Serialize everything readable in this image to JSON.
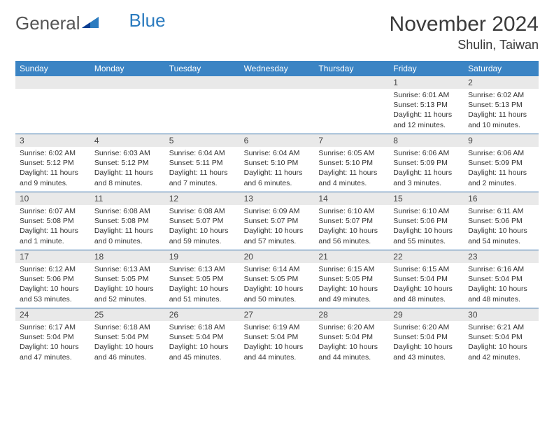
{
  "logo": {
    "text1": "General",
    "text2": "Blue"
  },
  "title": "November 2024",
  "location": "Shulin, Taiwan",
  "colors": {
    "header_bg": "#3b84c4",
    "row_border": "#2f6da8",
    "daynum_bg": "#e9e9e9",
    "text": "#333333"
  },
  "dow": [
    "Sunday",
    "Monday",
    "Tuesday",
    "Wednesday",
    "Thursday",
    "Friday",
    "Saturday"
  ],
  "weeks": [
    [
      {
        "n": "",
        "lines": []
      },
      {
        "n": "",
        "lines": []
      },
      {
        "n": "",
        "lines": []
      },
      {
        "n": "",
        "lines": []
      },
      {
        "n": "",
        "lines": []
      },
      {
        "n": "1",
        "lines": [
          "Sunrise: 6:01 AM",
          "Sunset: 5:13 PM",
          "Daylight: 11 hours",
          "and 12 minutes."
        ]
      },
      {
        "n": "2",
        "lines": [
          "Sunrise: 6:02 AM",
          "Sunset: 5:13 PM",
          "Daylight: 11 hours",
          "and 10 minutes."
        ]
      }
    ],
    [
      {
        "n": "3",
        "lines": [
          "Sunrise: 6:02 AM",
          "Sunset: 5:12 PM",
          "Daylight: 11 hours",
          "and 9 minutes."
        ]
      },
      {
        "n": "4",
        "lines": [
          "Sunrise: 6:03 AM",
          "Sunset: 5:12 PM",
          "Daylight: 11 hours",
          "and 8 minutes."
        ]
      },
      {
        "n": "5",
        "lines": [
          "Sunrise: 6:04 AM",
          "Sunset: 5:11 PM",
          "Daylight: 11 hours",
          "and 7 minutes."
        ]
      },
      {
        "n": "6",
        "lines": [
          "Sunrise: 6:04 AM",
          "Sunset: 5:10 PM",
          "Daylight: 11 hours",
          "and 6 minutes."
        ]
      },
      {
        "n": "7",
        "lines": [
          "Sunrise: 6:05 AM",
          "Sunset: 5:10 PM",
          "Daylight: 11 hours",
          "and 4 minutes."
        ]
      },
      {
        "n": "8",
        "lines": [
          "Sunrise: 6:06 AM",
          "Sunset: 5:09 PM",
          "Daylight: 11 hours",
          "and 3 minutes."
        ]
      },
      {
        "n": "9",
        "lines": [
          "Sunrise: 6:06 AM",
          "Sunset: 5:09 PM",
          "Daylight: 11 hours",
          "and 2 minutes."
        ]
      }
    ],
    [
      {
        "n": "10",
        "lines": [
          "Sunrise: 6:07 AM",
          "Sunset: 5:08 PM",
          "Daylight: 11 hours",
          "and 1 minute."
        ]
      },
      {
        "n": "11",
        "lines": [
          "Sunrise: 6:08 AM",
          "Sunset: 5:08 PM",
          "Daylight: 11 hours",
          "and 0 minutes."
        ]
      },
      {
        "n": "12",
        "lines": [
          "Sunrise: 6:08 AM",
          "Sunset: 5:07 PM",
          "Daylight: 10 hours",
          "and 59 minutes."
        ]
      },
      {
        "n": "13",
        "lines": [
          "Sunrise: 6:09 AM",
          "Sunset: 5:07 PM",
          "Daylight: 10 hours",
          "and 57 minutes."
        ]
      },
      {
        "n": "14",
        "lines": [
          "Sunrise: 6:10 AM",
          "Sunset: 5:07 PM",
          "Daylight: 10 hours",
          "and 56 minutes."
        ]
      },
      {
        "n": "15",
        "lines": [
          "Sunrise: 6:10 AM",
          "Sunset: 5:06 PM",
          "Daylight: 10 hours",
          "and 55 minutes."
        ]
      },
      {
        "n": "16",
        "lines": [
          "Sunrise: 6:11 AM",
          "Sunset: 5:06 PM",
          "Daylight: 10 hours",
          "and 54 minutes."
        ]
      }
    ],
    [
      {
        "n": "17",
        "lines": [
          "Sunrise: 6:12 AM",
          "Sunset: 5:06 PM",
          "Daylight: 10 hours",
          "and 53 minutes."
        ]
      },
      {
        "n": "18",
        "lines": [
          "Sunrise: 6:13 AM",
          "Sunset: 5:05 PM",
          "Daylight: 10 hours",
          "and 52 minutes."
        ]
      },
      {
        "n": "19",
        "lines": [
          "Sunrise: 6:13 AM",
          "Sunset: 5:05 PM",
          "Daylight: 10 hours",
          "and 51 minutes."
        ]
      },
      {
        "n": "20",
        "lines": [
          "Sunrise: 6:14 AM",
          "Sunset: 5:05 PM",
          "Daylight: 10 hours",
          "and 50 minutes."
        ]
      },
      {
        "n": "21",
        "lines": [
          "Sunrise: 6:15 AM",
          "Sunset: 5:05 PM",
          "Daylight: 10 hours",
          "and 49 minutes."
        ]
      },
      {
        "n": "22",
        "lines": [
          "Sunrise: 6:15 AM",
          "Sunset: 5:04 PM",
          "Daylight: 10 hours",
          "and 48 minutes."
        ]
      },
      {
        "n": "23",
        "lines": [
          "Sunrise: 6:16 AM",
          "Sunset: 5:04 PM",
          "Daylight: 10 hours",
          "and 48 minutes."
        ]
      }
    ],
    [
      {
        "n": "24",
        "lines": [
          "Sunrise: 6:17 AM",
          "Sunset: 5:04 PM",
          "Daylight: 10 hours",
          "and 47 minutes."
        ]
      },
      {
        "n": "25",
        "lines": [
          "Sunrise: 6:18 AM",
          "Sunset: 5:04 PM",
          "Daylight: 10 hours",
          "and 46 minutes."
        ]
      },
      {
        "n": "26",
        "lines": [
          "Sunrise: 6:18 AM",
          "Sunset: 5:04 PM",
          "Daylight: 10 hours",
          "and 45 minutes."
        ]
      },
      {
        "n": "27",
        "lines": [
          "Sunrise: 6:19 AM",
          "Sunset: 5:04 PM",
          "Daylight: 10 hours",
          "and 44 minutes."
        ]
      },
      {
        "n": "28",
        "lines": [
          "Sunrise: 6:20 AM",
          "Sunset: 5:04 PM",
          "Daylight: 10 hours",
          "and 44 minutes."
        ]
      },
      {
        "n": "29",
        "lines": [
          "Sunrise: 6:20 AM",
          "Sunset: 5:04 PM",
          "Daylight: 10 hours",
          "and 43 minutes."
        ]
      },
      {
        "n": "30",
        "lines": [
          "Sunrise: 6:21 AM",
          "Sunset: 5:04 PM",
          "Daylight: 10 hours",
          "and 42 minutes."
        ]
      }
    ]
  ]
}
